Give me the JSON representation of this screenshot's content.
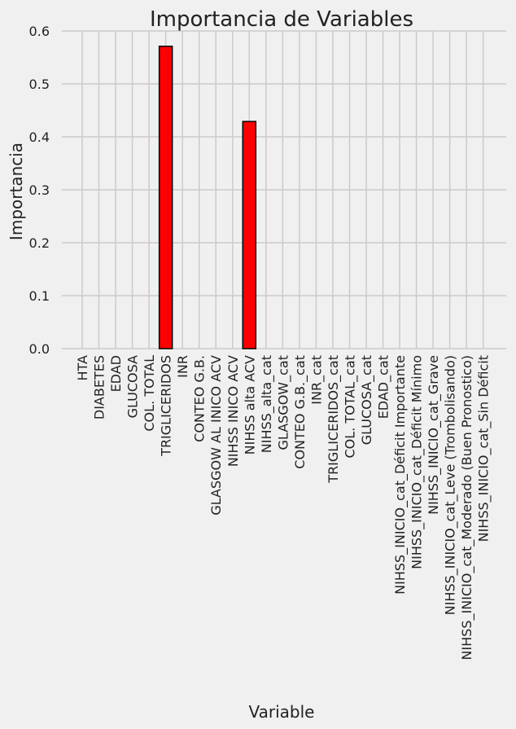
{
  "chart_data": {
    "type": "bar",
    "title": "Importancia de Variables",
    "xlabel": "Variable",
    "ylabel": "Importancia",
    "ylim": [
      0,
      0.6
    ],
    "yticks": [
      "0.0",
      "0.1",
      "0.2",
      "0.3",
      "0.4",
      "0.5",
      "0.6"
    ],
    "grid": true,
    "bar_color": "#ff0000",
    "edge_color": "#000000",
    "background": "#f0f0f0",
    "grid_color": "#cbcbcb",
    "categories": [
      "HTA",
      "DIABETES",
      "EDAD",
      "GLUCOSA",
      "COL. TOTAL",
      "TRIGLICERIDOS",
      "INR",
      "CONTEO G.B.",
      "GLASGOW AL INICO ACV",
      "NIHSS INICO ACV",
      "NIHSS alta ACV",
      "NIHSS_alta_cat",
      "GLASGOW_cat",
      "CONTEO G.B._cat",
      "INR_cat",
      "TRIGLICERIDOS_cat",
      "COL. TOTAL_cat",
      "GLUCOSA_cat",
      "EDAD_cat",
      "NIHSS_INICIO_cat_Déficit Importante",
      "NIHSS_INICIO_cat_Déficit Mínimo",
      "NIHSS_INICIO_cat_Grave",
      "NIHSS_INICIO_cat_Leve (Trombolisando)",
      "NIHSS_INICIO_cat_Moderado (Buen Pronostico)",
      "NIHSS_INICIO_cat_Sin Déficit"
    ],
    "values": [
      0,
      0,
      0,
      0,
      0,
      0.571,
      0,
      0,
      0,
      0,
      0.429,
      0,
      0,
      0,
      0,
      0,
      0,
      0,
      0,
      0,
      0,
      0,
      0,
      0,
      0
    ]
  }
}
